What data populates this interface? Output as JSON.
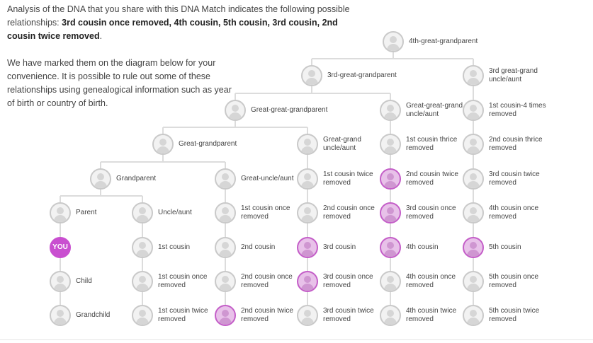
{
  "intro": {
    "line1_a": "Analysis of the DNA that you share with this DNA Match indicates the following possible relationships: ",
    "line1_b": "3rd cousin once removed, 4th cousin, 5th cousin, 3rd cousin, 2nd cousin twice removed",
    "line1_c": ".",
    "para2": "We have marked them on the diagram below for your convenience. It is possible to rule out some of these relationships using genealogical information such as year of birth or country of birth."
  },
  "colors": {
    "highlight": "#e8c1e9",
    "highlight_border": "#c45ec8",
    "you": "#c94fd0",
    "line": "#dcdcdc"
  },
  "icon": "person-silhouette-icon",
  "nodes": [
    {
      "id": "4gg",
      "label": "4th-great-grandparent",
      "state": "normal"
    },
    {
      "id": "3gg",
      "label": "3rd-great-grandparent",
      "state": "normal"
    },
    {
      "id": "3ggua",
      "label": "3rd great-grand uncle/aunt",
      "state": "normal"
    },
    {
      "id": "ggg",
      "label": "Great-great-grandparent",
      "state": "normal"
    },
    {
      "id": "ggua",
      "label": "Great-great-grand uncle/aunt",
      "state": "normal"
    },
    {
      "id": "1c4r",
      "label": "1st cousin-4 times removed",
      "state": "normal"
    },
    {
      "id": "gg",
      "label": "Great-grandparent",
      "state": "normal"
    },
    {
      "id": "gua",
      "label": "Great-grand uncle/aunt",
      "state": "normal"
    },
    {
      "id": "1c3r",
      "label": "1st cousin thrice removed",
      "state": "normal"
    },
    {
      "id": "2c3r",
      "label": "2nd cousin thrice removed",
      "state": "normal"
    },
    {
      "id": "gp",
      "label": "Grandparent",
      "state": "normal"
    },
    {
      "id": "gua2",
      "label": "Great-uncle/aunt",
      "state": "normal"
    },
    {
      "id": "1c2r",
      "label": "1st cousin twice removed",
      "state": "normal"
    },
    {
      "id": "2c2r_u",
      "label": "2nd cousin twice removed",
      "state": "highlight"
    },
    {
      "id": "3c2r",
      "label": "3rd cousin twice removed",
      "state": "normal"
    },
    {
      "id": "parent",
      "label": "Parent",
      "state": "normal"
    },
    {
      "id": "ua",
      "label": "Uncle/aunt",
      "state": "normal"
    },
    {
      "id": "1c1r_u",
      "label": "1st cousin once removed",
      "state": "normal"
    },
    {
      "id": "2c1r_u",
      "label": "2nd cousin once removed",
      "state": "normal"
    },
    {
      "id": "3c1r_u",
      "label": "3rd cousin once removed",
      "state": "highlight"
    },
    {
      "id": "4c1r_u",
      "label": "4th cousin once removed",
      "state": "normal"
    },
    {
      "id": "you",
      "label": "YOU",
      "state": "you"
    },
    {
      "id": "1c",
      "label": "1st cousin",
      "state": "normal"
    },
    {
      "id": "2c",
      "label": "2nd cousin",
      "state": "normal"
    },
    {
      "id": "3c",
      "label": "3rd cousin",
      "state": "highlight"
    },
    {
      "id": "4c",
      "label": "4th cousin",
      "state": "highlight"
    },
    {
      "id": "5c",
      "label": "5th cousin",
      "state": "highlight"
    },
    {
      "id": "child",
      "label": "Child",
      "state": "normal"
    },
    {
      "id": "1c1r_d",
      "label": "1st cousin once removed",
      "state": "normal"
    },
    {
      "id": "2c1r_d",
      "label": "2nd cousin once removed",
      "state": "normal"
    },
    {
      "id": "3c1r_d",
      "label": "3rd cousin once removed",
      "state": "highlight"
    },
    {
      "id": "4c1r_d",
      "label": "4th cousin once removed",
      "state": "normal"
    },
    {
      "id": "5c1r_d",
      "label": "5th cousin once removed",
      "state": "normal"
    },
    {
      "id": "grandchild",
      "label": "Grandchild",
      "state": "normal"
    },
    {
      "id": "1c2r_d",
      "label": "1st cousin twice removed",
      "state": "normal"
    },
    {
      "id": "2c2r_d",
      "label": "2nd cousin twice removed",
      "state": "highlight"
    },
    {
      "id": "3c2r_d",
      "label": "3rd cousin twice removed",
      "state": "normal"
    },
    {
      "id": "4c2r_d",
      "label": "4th cousin twice removed",
      "state": "normal"
    },
    {
      "id": "5c2r_d",
      "label": "5th cousin twice removed",
      "state": "normal"
    }
  ]
}
